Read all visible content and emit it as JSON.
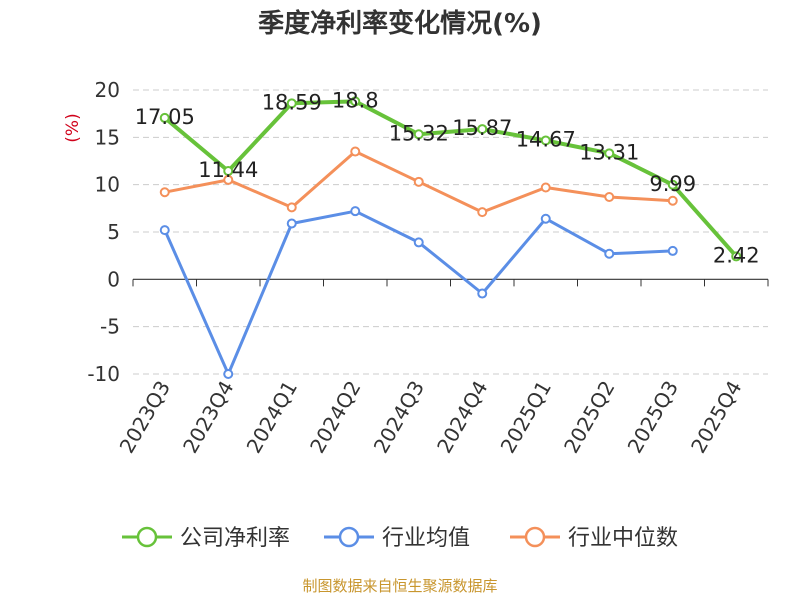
{
  "chart_data": {
    "type": "line",
    "title": "季度净利率变化情况(%)",
    "ylabel": "(%)",
    "xlabel": "",
    "categories": [
      "2023Q3",
      "2023Q4",
      "2024Q1",
      "2024Q2",
      "2024Q3",
      "2024Q4",
      "2025Q1",
      "2025Q2",
      "2025Q3",
      "2025Q4"
    ],
    "ylim": [
      -10,
      20
    ],
    "yticks": [
      20,
      15,
      10,
      5,
      0,
      -5,
      -10
    ],
    "grid": true,
    "legend_position": "bottom",
    "series": [
      {
        "name": "公司净利率",
        "color": "#67c23a",
        "values": [
          17.05,
          11.44,
          18.59,
          18.8,
          15.32,
          15.87,
          14.67,
          13.31,
          9.99,
          2.42
        ],
        "labels": [
          "17.05",
          "11.44",
          "18.59",
          "18.8",
          "15.32",
          "15.87",
          "14.67",
          "13.31",
          "9.99",
          "2.42"
        ]
      },
      {
        "name": "行业均值",
        "color": "#5b8ee6",
        "values": [
          5.2,
          -10.0,
          5.9,
          7.2,
          3.9,
          -1.5,
          6.4,
          2.7,
          3.0,
          null
        ]
      },
      {
        "name": "行业中位数",
        "color": "#f4905a",
        "values": [
          9.2,
          10.5,
          7.6,
          13.5,
          10.3,
          7.1,
          9.7,
          8.7,
          8.3,
          null
        ]
      }
    ]
  },
  "source": "制图数据来自恒生聚源数据库"
}
